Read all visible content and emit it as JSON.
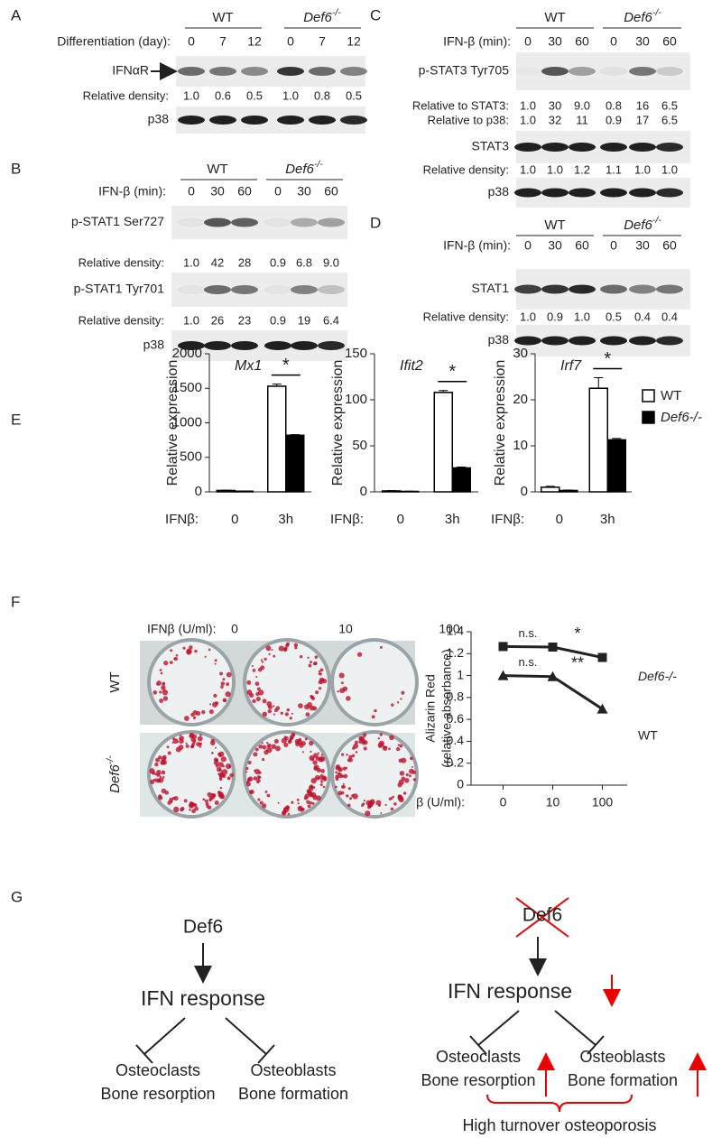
{
  "panel_labels": [
    "A",
    "B",
    "C",
    "D",
    "E",
    "F",
    "G"
  ],
  "blots": {
    "A": {
      "groups": [
        {
          "text": "WT"
        },
        {
          "text": "Def6",
          "sup": "-/-"
        }
      ],
      "condition": "Differentiation (day):",
      "lanes": [
        "0",
        "7",
        "12",
        "0",
        "7",
        "12"
      ],
      "rows": [
        {
          "blot": "IFNαR"
        },
        {
          "density_label": "Relative density:",
          "values": [
            "1.0",
            "0.6",
            "0.5",
            "1.0",
            "0.8",
            "0.5"
          ]
        },
        {
          "blot": "p38"
        }
      ]
    },
    "B": {
      "groups": [
        {
          "text": "WT"
        },
        {
          "text": "Def6",
          "sup": "-/-"
        }
      ],
      "condition": "IFN-β (min):",
      "lanes": [
        "0",
        "30",
        "60",
        "0",
        "30",
        "60"
      ],
      "rows": [
        {
          "blot": "p-STAT1 Ser727"
        },
        {
          "density_label": "Relative density:",
          "values": [
            "1.0",
            "42",
            "28",
            "0.9",
            "6.8",
            "9.0"
          ]
        },
        {
          "blot": "p-STAT1 Tyr701"
        },
        {
          "density_label": "Relative density:",
          "values": [
            "1.0",
            "26",
            "23",
            "0.9",
            "19",
            "6.4"
          ]
        },
        {
          "blot": "p38"
        }
      ]
    },
    "C": {
      "groups": [
        {
          "text": "WT"
        },
        {
          "text": "Def6",
          "sup": "-/-"
        }
      ],
      "condition": "IFN-β (min):",
      "lanes": [
        "0",
        "30",
        "60",
        "0",
        "30",
        "60"
      ],
      "rows": [
        {
          "blot": "p-STAT3 Tyr705"
        },
        {
          "density_label": "Relative to STAT3:",
          "values": [
            "1.0",
            "30",
            "9.0",
            "0.8",
            "16",
            "6.5"
          ]
        },
        {
          "density_label": "Relative to p38:",
          "values": [
            "1.0",
            "32",
            "11",
            "0.9",
            "17",
            "6.5"
          ]
        },
        {
          "blot": "STAT3"
        },
        {
          "density_label": "Relative density:",
          "values": [
            "1.0",
            "1.0",
            "1.2",
            "1.1",
            "1.0",
            "1.0"
          ]
        },
        {
          "blot": "p38"
        }
      ]
    },
    "D": {
      "groups": [
        {
          "text": "WT"
        },
        {
          "text": "Def6",
          "sup": "-/-"
        }
      ],
      "condition": "IFN-β (min):",
      "lanes": [
        "0",
        "30",
        "60",
        "0",
        "30",
        "60"
      ],
      "rows": [
        {
          "blot": "STAT1"
        },
        {
          "density_label": "Relative density:",
          "values": [
            "1.0",
            "0.9",
            "1.0",
            "0.5",
            "0.4",
            "0.4"
          ]
        },
        {
          "blot": "p38"
        }
      ]
    }
  },
  "chart_data": [
    {
      "type": "bar",
      "title": "Mx1",
      "ylabel": "Relative expression",
      "xlabel": "IFNβ:",
      "categories": [
        "0",
        "3h"
      ],
      "series": [
        {
          "name": "WT",
          "color": "#ffffff",
          "values": [
            20,
            1530
          ],
          "errors": [
            4,
            30
          ]
        },
        {
          "name": "Def6-/-",
          "color": "#000000",
          "values": [
            10,
            820
          ],
          "errors": [
            2,
            8
          ]
        }
      ],
      "ylim": [
        0,
        2000
      ],
      "yticks": [
        0,
        500,
        1000,
        1500,
        2000
      ],
      "annotation": "*"
    },
    {
      "type": "bar",
      "title": "Ifit2",
      "ylabel": "Relative expression",
      "xlabel": "IFNβ:",
      "categories": [
        "0",
        "3h"
      ],
      "series": [
        {
          "name": "WT",
          "color": "#ffffff",
          "values": [
            1,
            108
          ],
          "errors": [
            0.3,
            2
          ]
        },
        {
          "name": "Def6-/-",
          "color": "#000000",
          "values": [
            0.5,
            26
          ],
          "errors": [
            0.2,
            1
          ]
        }
      ],
      "ylim": [
        0,
        150
      ],
      "yticks": [
        0,
        50,
        100,
        150
      ],
      "annotation": "*"
    },
    {
      "type": "bar",
      "title": "Irf7",
      "ylabel": "Relative expression",
      "xlabel": "IFNβ:",
      "categories": [
        "0",
        "3h"
      ],
      "series": [
        {
          "name": "WT",
          "color": "#ffffff",
          "values": [
            1,
            22.5
          ],
          "errors": [
            0.2,
            2.3
          ]
        },
        {
          "name": "Def6-/-",
          "color": "#000000",
          "values": [
            0.3,
            11.3
          ],
          "errors": [
            0.1,
            0.3
          ]
        }
      ],
      "ylim": [
        0,
        30
      ],
      "yticks": [
        0,
        10,
        20,
        30
      ],
      "annotation": "*",
      "legend": "right"
    },
    {
      "type": "line",
      "ylabel": [
        "Alizarin Red",
        "(relative absorbance)"
      ],
      "xlabel": "IFNβ (U/ml):",
      "categories": [
        "0",
        "10",
        "100"
      ],
      "series": [
        {
          "name": "Def6-/-",
          "color": "#222222",
          "marker": "square",
          "values": [
            1.265,
            1.26,
            1.165
          ],
          "annotations": [
            "n.s.",
            "*"
          ]
        },
        {
          "name": "WT",
          "color": "#222222",
          "marker": "triangle",
          "values": [
            1.0,
            0.99,
            0.695
          ],
          "annotations": [
            "n.s.",
            "**"
          ]
        }
      ],
      "ylim": [
        0,
        1.4
      ],
      "yticks": [
        0,
        0.2,
        0.4,
        0.6,
        0.8,
        1,
        1.2,
        1.4
      ]
    }
  ],
  "photo": {
    "dose_label": "IFNβ (U/ml):",
    "doses": [
      "0",
      "10",
      "100"
    ],
    "rows": [
      {
        "text": "WT"
      },
      {
        "text": "Def6",
        "sup": "-/-"
      }
    ]
  },
  "diagram": {
    "normal": {
      "gene": "Def6",
      "response": "IFN response",
      "left": [
        "Osteoclasts",
        "Bone resorption"
      ],
      "right": [
        "Osteoblasts",
        "Bone formation"
      ]
    },
    "knockout": {
      "gene": "Def6",
      "response": "IFN response",
      "left": [
        "Osteoclasts",
        "Bone resorption"
      ],
      "right": [
        "Osteoblasts",
        "Bone formation"
      ],
      "outcome": "High turnover osteoporosis"
    }
  }
}
